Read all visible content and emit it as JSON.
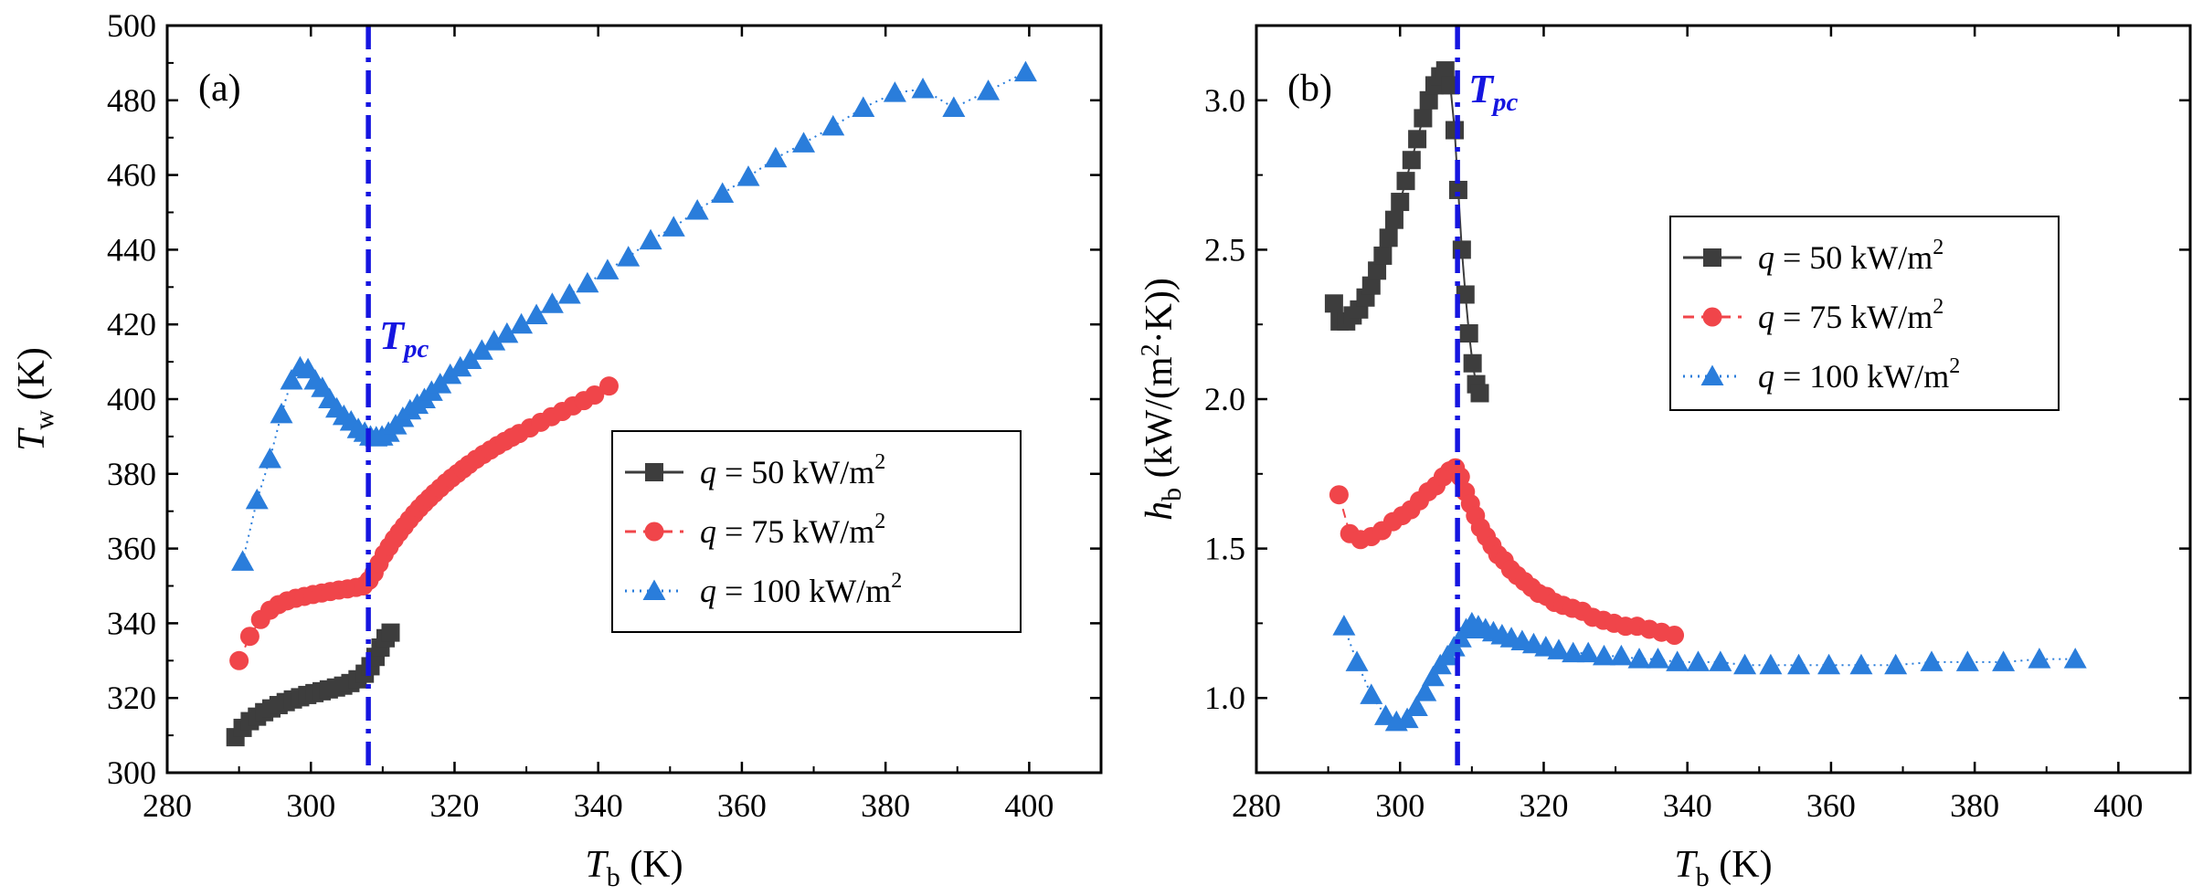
{
  "chart_data": [
    {
      "type": "scatter",
      "panel_label": "(a)",
      "xlabel": {
        "symbol": "T",
        "sub": "b",
        "unit": " (K)"
      },
      "ylabel": {
        "symbol": "T",
        "sub": "w",
        "unit": " (K)"
      },
      "xlim": [
        280,
        410
      ],
      "ylim": [
        300,
        500
      ],
      "xticks": [
        280,
        300,
        320,
        340,
        360,
        380,
        400
      ],
      "yticks": [
        300,
        320,
        340,
        360,
        380,
        400,
        420,
        440,
        460,
        480,
        500
      ],
      "tpc": {
        "x": 308,
        "label": "T",
        "sub": "pc",
        "color": "#1515e0"
      },
      "legend_position": "right-middle",
      "series": [
        {
          "name": "q = 50 kW/m2",
          "q": "q",
          "rest": " = 50 kW/m",
          "sup": "2",
          "marker": "square",
          "color": "#3d3d3d",
          "line": "solid",
          "x": [
            289.5,
            290.5,
            291.5,
            292.5,
            293.5,
            294.5,
            295.5,
            296.5,
            297.5,
            298.5,
            299.5,
            300.5,
            301.5,
            302.5,
            303.5,
            304.5,
            305.5,
            306.5,
            307.5,
            308.3,
            309,
            309.7,
            310.4,
            311.1
          ],
          "y": [
            309.5,
            312,
            313.8,
            315,
            316.2,
            317.2,
            318.1,
            318.9,
            319.6,
            320.2,
            320.8,
            321.3,
            321.8,
            322.3,
            322.8,
            323.3,
            324,
            325,
            326.5,
            328.5,
            331,
            333.5,
            336,
            337.5
          ]
        },
        {
          "name": "q = 75 kW/m2",
          "q": "q",
          "rest": " = 75 kW/m",
          "sup": "2",
          "marker": "circle",
          "color": "#f0454a",
          "line": "dashed",
          "x": [
            290,
            291.5,
            293,
            294.3,
            295.5,
            296.7,
            297.9,
            299.1,
            300.3,
            301.5,
            302.7,
            303.9,
            305.1,
            306.3,
            307.3,
            308.1,
            308.8,
            309.5,
            310.2,
            310.9,
            311.6,
            312.3,
            313,
            313.7,
            314.4,
            315.1,
            315.8,
            316.5,
            317.2,
            318,
            318.8,
            319.6,
            320.4,
            321.2,
            322,
            323,
            324,
            325,
            326,
            327,
            328,
            329,
            330.5,
            332,
            333.5,
            335,
            336.5,
            338,
            339.5,
            341.5
          ],
          "y": [
            330,
            336.5,
            341,
            343.5,
            345,
            346,
            346.7,
            347.2,
            347.7,
            348.1,
            348.5,
            348.9,
            349.2,
            349.6,
            350,
            351.5,
            353.5,
            356,
            358.5,
            360.5,
            362.5,
            364.3,
            366,
            367.7,
            369.3,
            370.8,
            372.2,
            373.5,
            374.8,
            376.2,
            377.6,
            378.9,
            380.1,
            381.3,
            382.5,
            383.9,
            385.2,
            386.4,
            387.6,
            388.7,
            389.8,
            390.8,
            392.3,
            393.8,
            395.3,
            396.7,
            398.2,
            399.6,
            401.1,
            403.5
          ]
        },
        {
          "name": "q = 100 kW/m2",
          "q": "q",
          "rest": " = 100 kW/m",
          "sup": "2",
          "marker": "triangle",
          "color": "#2a7ddb",
          "line": "dotted",
          "x": [
            290.5,
            292.5,
            294.3,
            295.9,
            297.3,
            298.5,
            299.6,
            300.6,
            301.6,
            302.6,
            303.6,
            304.6,
            305.6,
            306.6,
            307.5,
            308.3,
            309.1,
            309.9,
            310.8,
            311.8,
            312.8,
            313.8,
            314.8,
            315.8,
            316.8,
            318,
            319.4,
            320.8,
            322.2,
            323.8,
            325.5,
            327.3,
            329.3,
            331.4,
            333.6,
            336,
            338.5,
            341.3,
            344.2,
            347.3,
            350.5,
            353.8,
            357.3,
            360.9,
            364.7,
            368.6,
            372.7,
            376.9,
            381.3,
            385.2,
            389.5,
            394.3,
            399.5
          ],
          "y": [
            356.5,
            373,
            384,
            396,
            405,
            408.5,
            408,
            405,
            403,
            400,
            397.5,
            395.5,
            394,
            392,
            391,
            390,
            389.8,
            390,
            391,
            393,
            395,
            397,
            398.5,
            400,
            402,
            404,
            406.5,
            408.5,
            410.5,
            413,
            415.5,
            417.5,
            420,
            422.5,
            425.5,
            428,
            431,
            434.5,
            438,
            442.5,
            446,
            450.5,
            455,
            459.5,
            464.5,
            468.5,
            473,
            478,
            482,
            483,
            478,
            482.5,
            487.5
          ]
        }
      ]
    },
    {
      "type": "scatter",
      "panel_label": "(b)",
      "xlabel": {
        "symbol": "T",
        "sub": "b",
        "unit": " (K)"
      },
      "ylabel": {
        "symbol": "h",
        "sub": "b",
        "pre": " (kW/(m",
        "sup": "2",
        "post": "·K))"
      },
      "xlim": [
        280,
        410
      ],
      "ylim": [
        0.75,
        3.25
      ],
      "xticks": [
        280,
        300,
        320,
        340,
        360,
        380,
        400
      ],
      "yticks": [
        1.0,
        1.5,
        2.0,
        2.5,
        3.0
      ],
      "ytick_labels": [
        "1.0",
        "1.5",
        "2.0",
        "2.5",
        "3.0"
      ],
      "tpc": {
        "x": 308,
        "label": "T",
        "sub": "pc",
        "color": "#1515e0"
      },
      "legend_position": "right-upper",
      "series": [
        {
          "name": "q = 50 kW/m2",
          "q": "q",
          "rest": " = 50 kW/m",
          "sup": "2",
          "marker": "square",
          "color": "#3d3d3d",
          "line": "solid",
          "x": [
            290.8,
            291.6,
            292.5,
            293.4,
            294.3,
            295.2,
            296,
            296.8,
            297.6,
            298.4,
            299.2,
            300,
            300.8,
            301.6,
            302.4,
            303.2,
            304,
            304.8,
            305.6,
            306.3,
            307,
            307.6,
            308.1,
            308.6,
            309.1,
            309.6,
            310.1,
            310.6,
            311.1
          ],
          "y": [
            2.32,
            2.26,
            2.26,
            2.28,
            2.3,
            2.34,
            2.38,
            2.43,
            2.48,
            2.54,
            2.6,
            2.66,
            2.73,
            2.8,
            2.87,
            2.94,
            3.0,
            3.05,
            3.08,
            3.1,
            3.05,
            2.9,
            2.7,
            2.5,
            2.35,
            2.22,
            2.12,
            2.05,
            2.02
          ]
        },
        {
          "name": "q = 75 kW/m2",
          "q": "q",
          "rest": " = 75 kW/m",
          "sup": "2",
          "marker": "circle",
          "color": "#f0454a",
          "line": "dashed",
          "x": [
            291.5,
            293,
            294.5,
            296,
            297.5,
            299,
            300.3,
            301.5,
            302.7,
            303.9,
            305,
            306,
            306.9,
            307.7,
            308.4,
            309.1,
            309.8,
            310.5,
            311.2,
            312,
            312.8,
            313.6,
            314.5,
            315.4,
            316.3,
            317.3,
            318.3,
            319.3,
            320.4,
            321.5,
            322.7,
            324,
            325.4,
            326.8,
            328.3,
            329.8,
            331.4,
            333,
            334.7,
            336.4,
            338.2
          ],
          "y": [
            1.68,
            1.55,
            1.53,
            1.54,
            1.56,
            1.59,
            1.61,
            1.63,
            1.66,
            1.69,
            1.71,
            1.74,
            1.76,
            1.77,
            1.74,
            1.69,
            1.65,
            1.61,
            1.57,
            1.54,
            1.51,
            1.48,
            1.46,
            1.43,
            1.41,
            1.39,
            1.37,
            1.35,
            1.34,
            1.32,
            1.31,
            1.3,
            1.29,
            1.27,
            1.26,
            1.25,
            1.24,
            1.24,
            1.23,
            1.22,
            1.21
          ]
        },
        {
          "name": "q = 100 kW/m2",
          "q": "q",
          "rest": " = 100 kW/m",
          "sup": "2",
          "marker": "triangle",
          "color": "#2a7ddb",
          "line": "dotted",
          "x": [
            292.2,
            294,
            296,
            298,
            299.5,
            301,
            302.3,
            303.5,
            304.6,
            305.6,
            306.6,
            307.5,
            308.4,
            309.2,
            310,
            310.9,
            311.9,
            313,
            314.2,
            315.5,
            317,
            318.6,
            320.3,
            322.1,
            324.1,
            326.2,
            328.4,
            330.8,
            333.3,
            335.9,
            338.6,
            341.5,
            344.6,
            348,
            351.6,
            355.5,
            359.7,
            364.2,
            369,
            374,
            379,
            384,
            389,
            394
          ],
          "y": [
            1.24,
            1.12,
            1.01,
            0.94,
            0.92,
            0.93,
            0.97,
            1.02,
            1.07,
            1.11,
            1.14,
            1.17,
            1.2,
            1.23,
            1.25,
            1.24,
            1.23,
            1.22,
            1.21,
            1.2,
            1.19,
            1.18,
            1.17,
            1.16,
            1.15,
            1.15,
            1.14,
            1.14,
            1.13,
            1.13,
            1.12,
            1.12,
            1.12,
            1.11,
            1.11,
            1.11,
            1.11,
            1.11,
            1.11,
            1.12,
            1.12,
            1.12,
            1.13,
            1.13
          ]
        }
      ]
    }
  ]
}
